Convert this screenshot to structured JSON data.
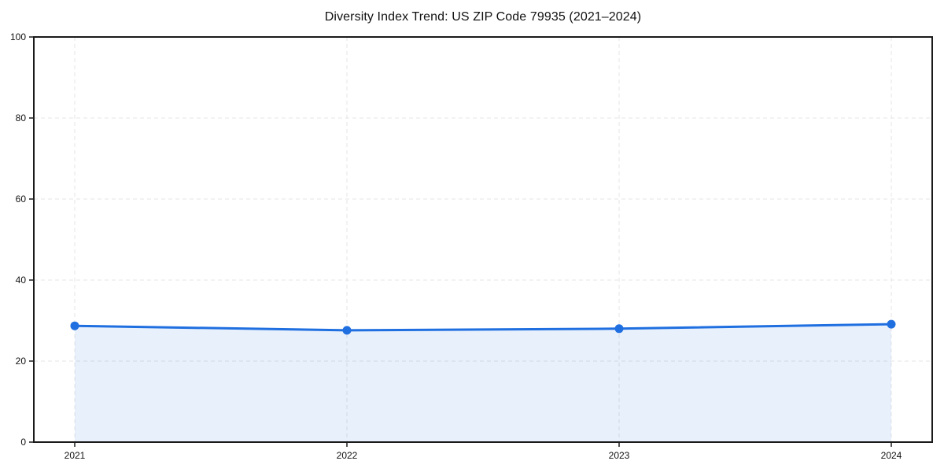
{
  "chart_data": {
    "type": "area",
    "title": "Diversity Index Trend: US ZIP Code 79935 (2021–2024)",
    "x": [
      2021,
      2022,
      2023,
      2024
    ],
    "x_tick_labels": [
      "2021",
      "2022",
      "2023",
      "2024"
    ],
    "series": [
      {
        "name": "Diversity Index",
        "values": [
          28.7,
          27.6,
          28.0,
          29.1
        ]
      }
    ],
    "xlabel": "",
    "ylabel": "",
    "ylim": [
      0,
      100
    ],
    "yticks": [
      0,
      20,
      40,
      60,
      80,
      100
    ],
    "y_tick_labels": [
      "0",
      "20",
      "40",
      "60",
      "80",
      "100"
    ],
    "grid": "dashed, horizontal and vertical",
    "legend_position": "none",
    "colors": {
      "line": "#1f6fe0",
      "marker": "#1f6fe0",
      "area_fill": "rgba(31, 111, 224, 0.10)",
      "gridline": "#e4e4e4",
      "spine": "#1a1a1a",
      "tick_label": "#111111",
      "background": "#ffffff"
    }
  }
}
